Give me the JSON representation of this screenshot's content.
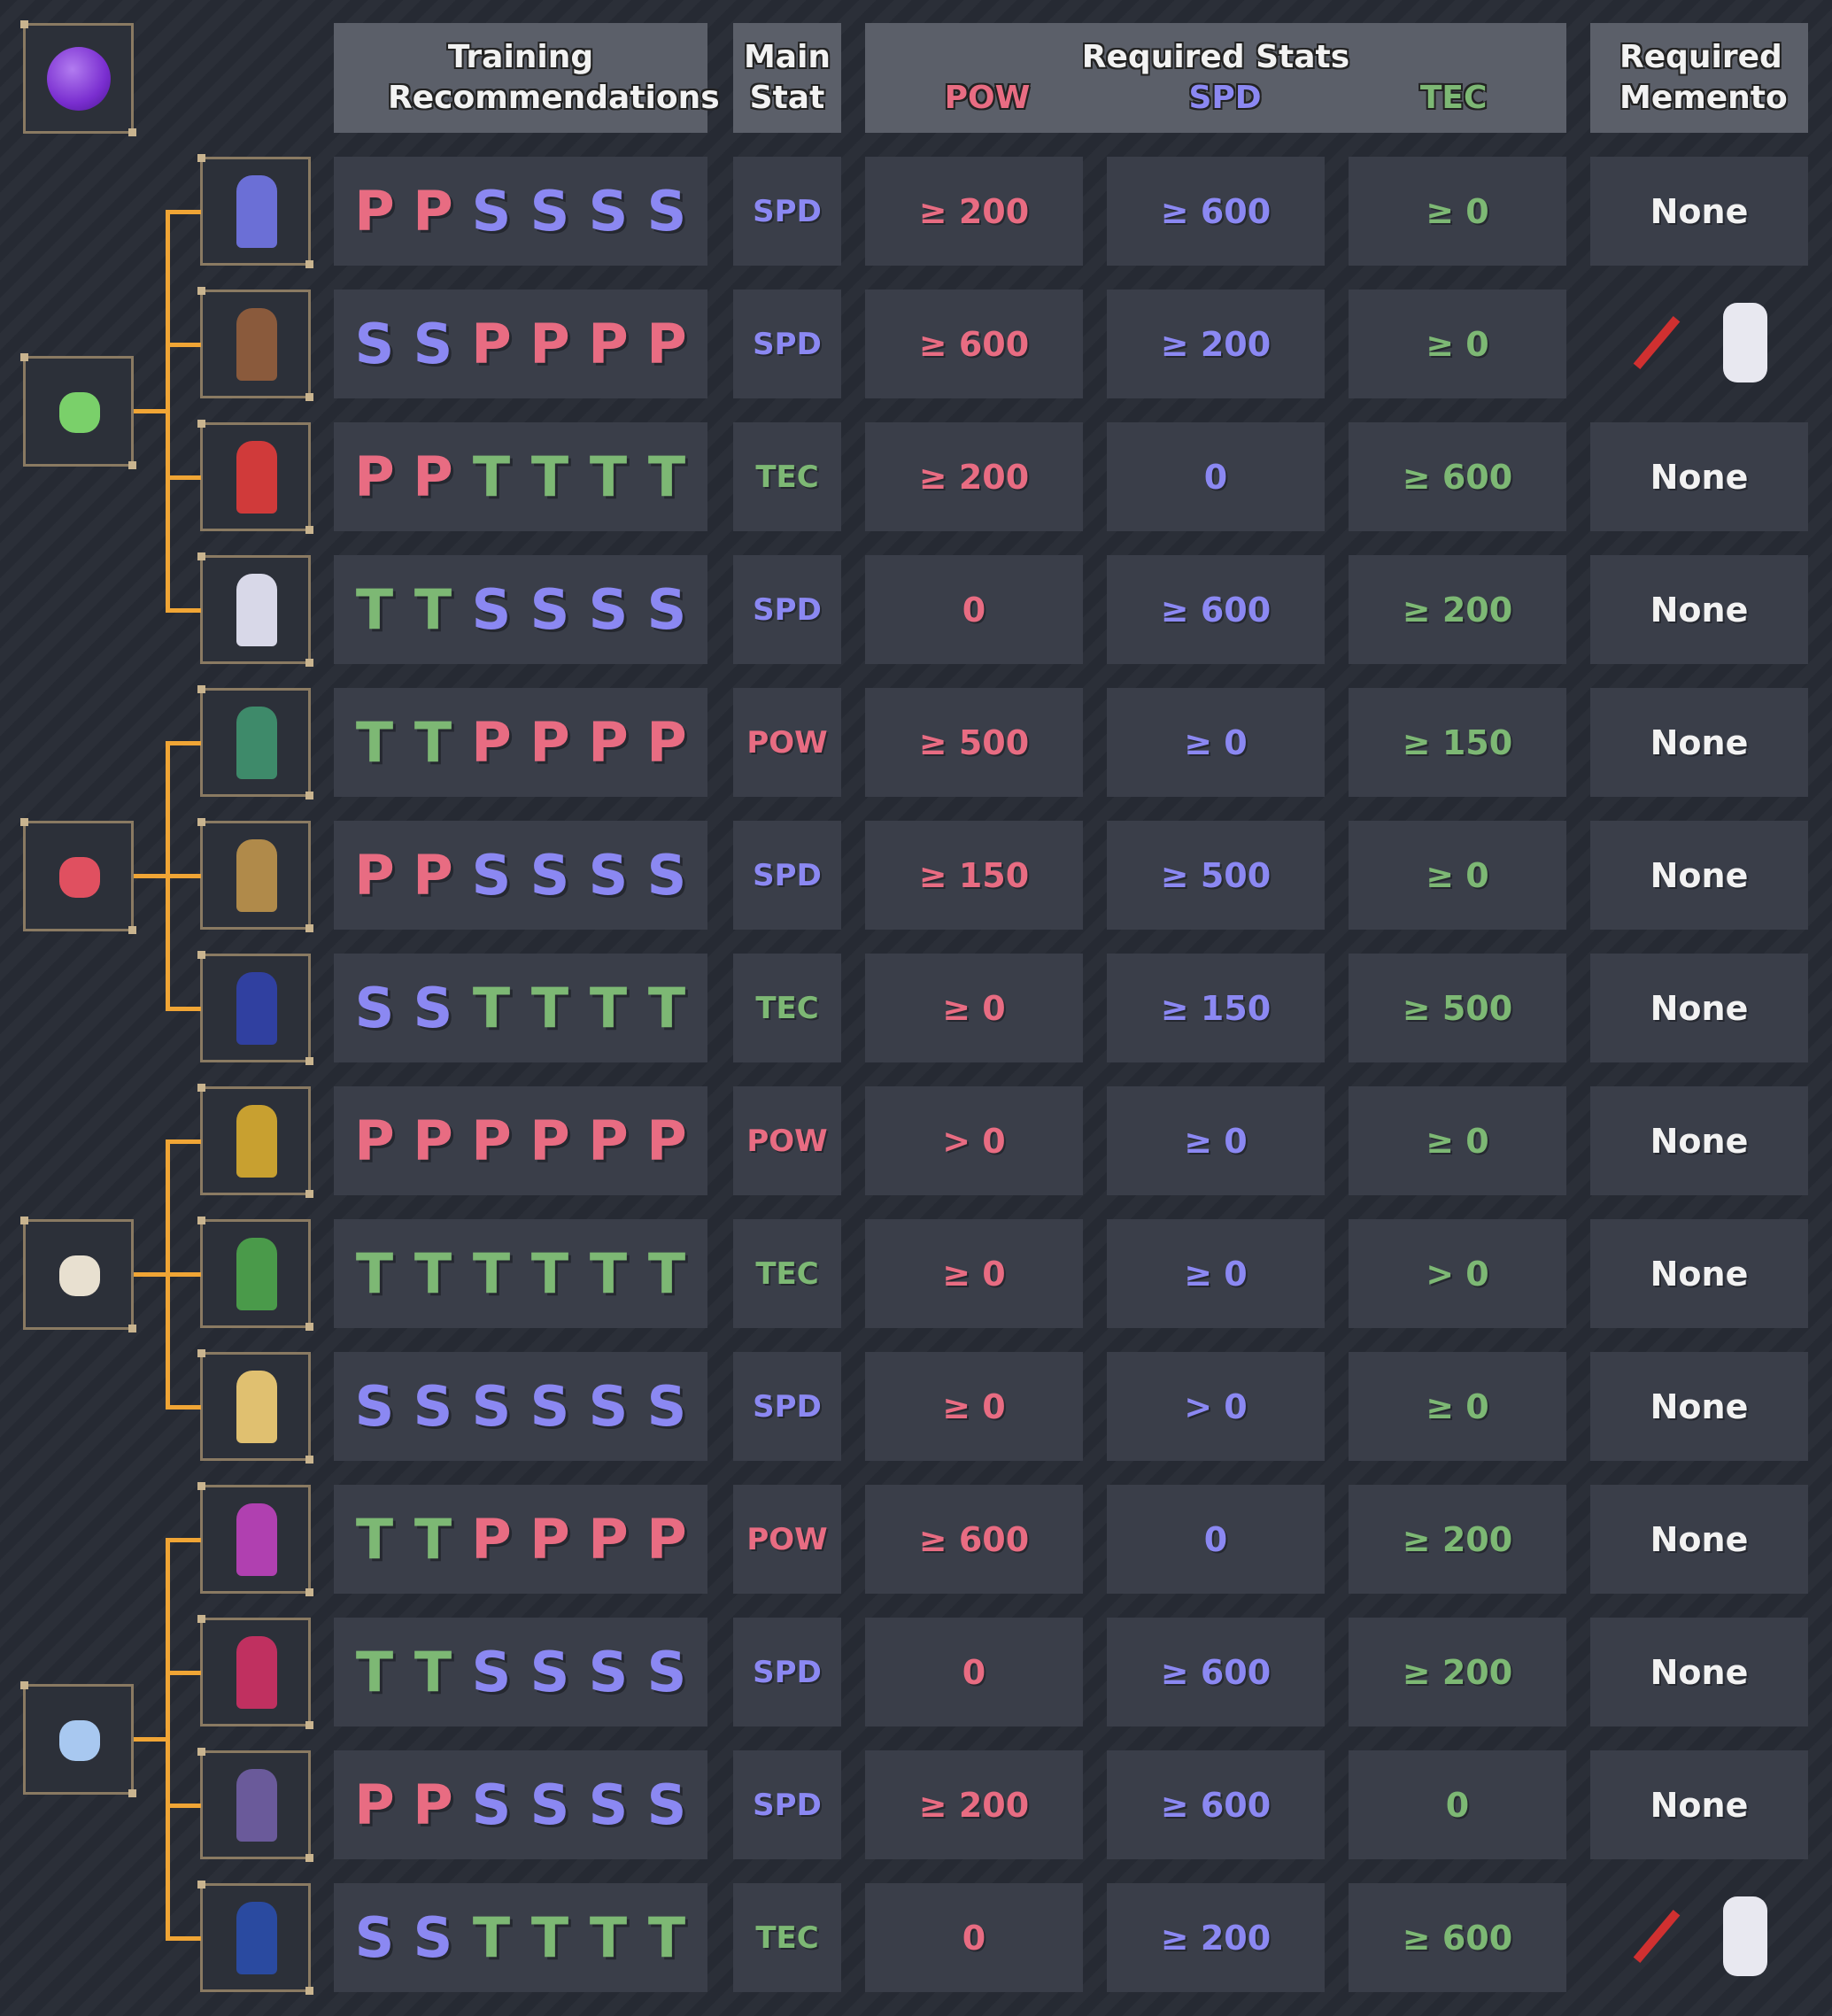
{
  "header": {
    "training": "Training Recommendations",
    "main_stat": "Main Stat",
    "required_stats": "Required Stats",
    "stats": [
      "POW",
      "SPD",
      "TEC"
    ],
    "memento": "Required Memento"
  },
  "groups": [
    [
      0,
      1,
      2,
      3
    ],
    [
      4,
      5,
      6
    ],
    [
      7,
      8,
      9
    ],
    [
      10,
      11,
      12,
      13
    ]
  ],
  "rows": [
    {
      "training": [
        "P",
        "P",
        "S",
        "S",
        "S",
        "S"
      ],
      "main": "SPD",
      "pow": "≥ 200",
      "spd": "≥ 600",
      "tec": "≥ 0",
      "memento": "None"
    },
    {
      "training": [
        "S",
        "S",
        "P",
        "P",
        "P",
        "P"
      ],
      "main": "SPD",
      "pow": "≥ 600",
      "spd": "≥ 200",
      "tec": "≥ 0",
      "memento": null
    },
    {
      "training": [
        "P",
        "P",
        "T",
        "T",
        "T",
        "T"
      ],
      "main": "TEC",
      "pow": "≥ 200",
      "spd": "0",
      "tec": "≥ 600",
      "memento": "None"
    },
    {
      "training": [
        "T",
        "T",
        "S",
        "S",
        "S",
        "S"
      ],
      "main": "SPD",
      "pow": "0",
      "spd": "≥ 600",
      "tec": "≥ 200",
      "memento": "None"
    },
    {
      "training": [
        "T",
        "T",
        "P",
        "P",
        "P",
        "P"
      ],
      "main": "POW",
      "pow": "≥ 500",
      "spd": "≥ 0",
      "tec": "≥ 150",
      "memento": "None"
    },
    {
      "training": [
        "P",
        "P",
        "S",
        "S",
        "S",
        "S"
      ],
      "main": "SPD",
      "pow": "≥ 150",
      "spd": "≥ 500",
      "tec": "≥ 0",
      "memento": "None"
    },
    {
      "training": [
        "S",
        "S",
        "T",
        "T",
        "T",
        "T"
      ],
      "main": "TEC",
      "pow": "≥ 0",
      "spd": "≥ 150",
      "tec": "≥ 500",
      "memento": "None"
    },
    {
      "training": [
        "P",
        "P",
        "P",
        "P",
        "P",
        "P"
      ],
      "main": "POW",
      "pow": "> 0",
      "spd": "≥ 0",
      "tec": "≥ 0",
      "memento": "None"
    },
    {
      "training": [
        "T",
        "T",
        "T",
        "T",
        "T",
        "T"
      ],
      "main": "TEC",
      "pow": "≥ 0",
      "spd": "≥ 0",
      "tec": "> 0",
      "memento": "None"
    },
    {
      "training": [
        "S",
        "S",
        "S",
        "S",
        "S",
        "S"
      ],
      "main": "SPD",
      "pow": "≥ 0",
      "spd": "> 0",
      "tec": "≥ 0",
      "memento": "None"
    },
    {
      "training": [
        "T",
        "T",
        "P",
        "P",
        "P",
        "P"
      ],
      "main": "POW",
      "pow": "≥ 600",
      "spd": "0",
      "tec": "≥ 200",
      "memento": "None"
    },
    {
      "training": [
        "T",
        "T",
        "S",
        "S",
        "S",
        "S"
      ],
      "main": "SPD",
      "pow": "0",
      "spd": "≥ 600",
      "tec": "≥ 200",
      "memento": "None"
    },
    {
      "training": [
        "P",
        "P",
        "S",
        "S",
        "S",
        "S"
      ],
      "main": "SPD",
      "pow": "≥ 200",
      "spd": "≥ 600",
      "tec": "0",
      "memento": "None"
    },
    {
      "training": [
        "S",
        "S",
        "T",
        "T",
        "T",
        "T"
      ],
      "main": "TEC",
      "pow": "0",
      "spd": "≥ 200",
      "tec": "≥ 600",
      "memento": null
    }
  ]
}
